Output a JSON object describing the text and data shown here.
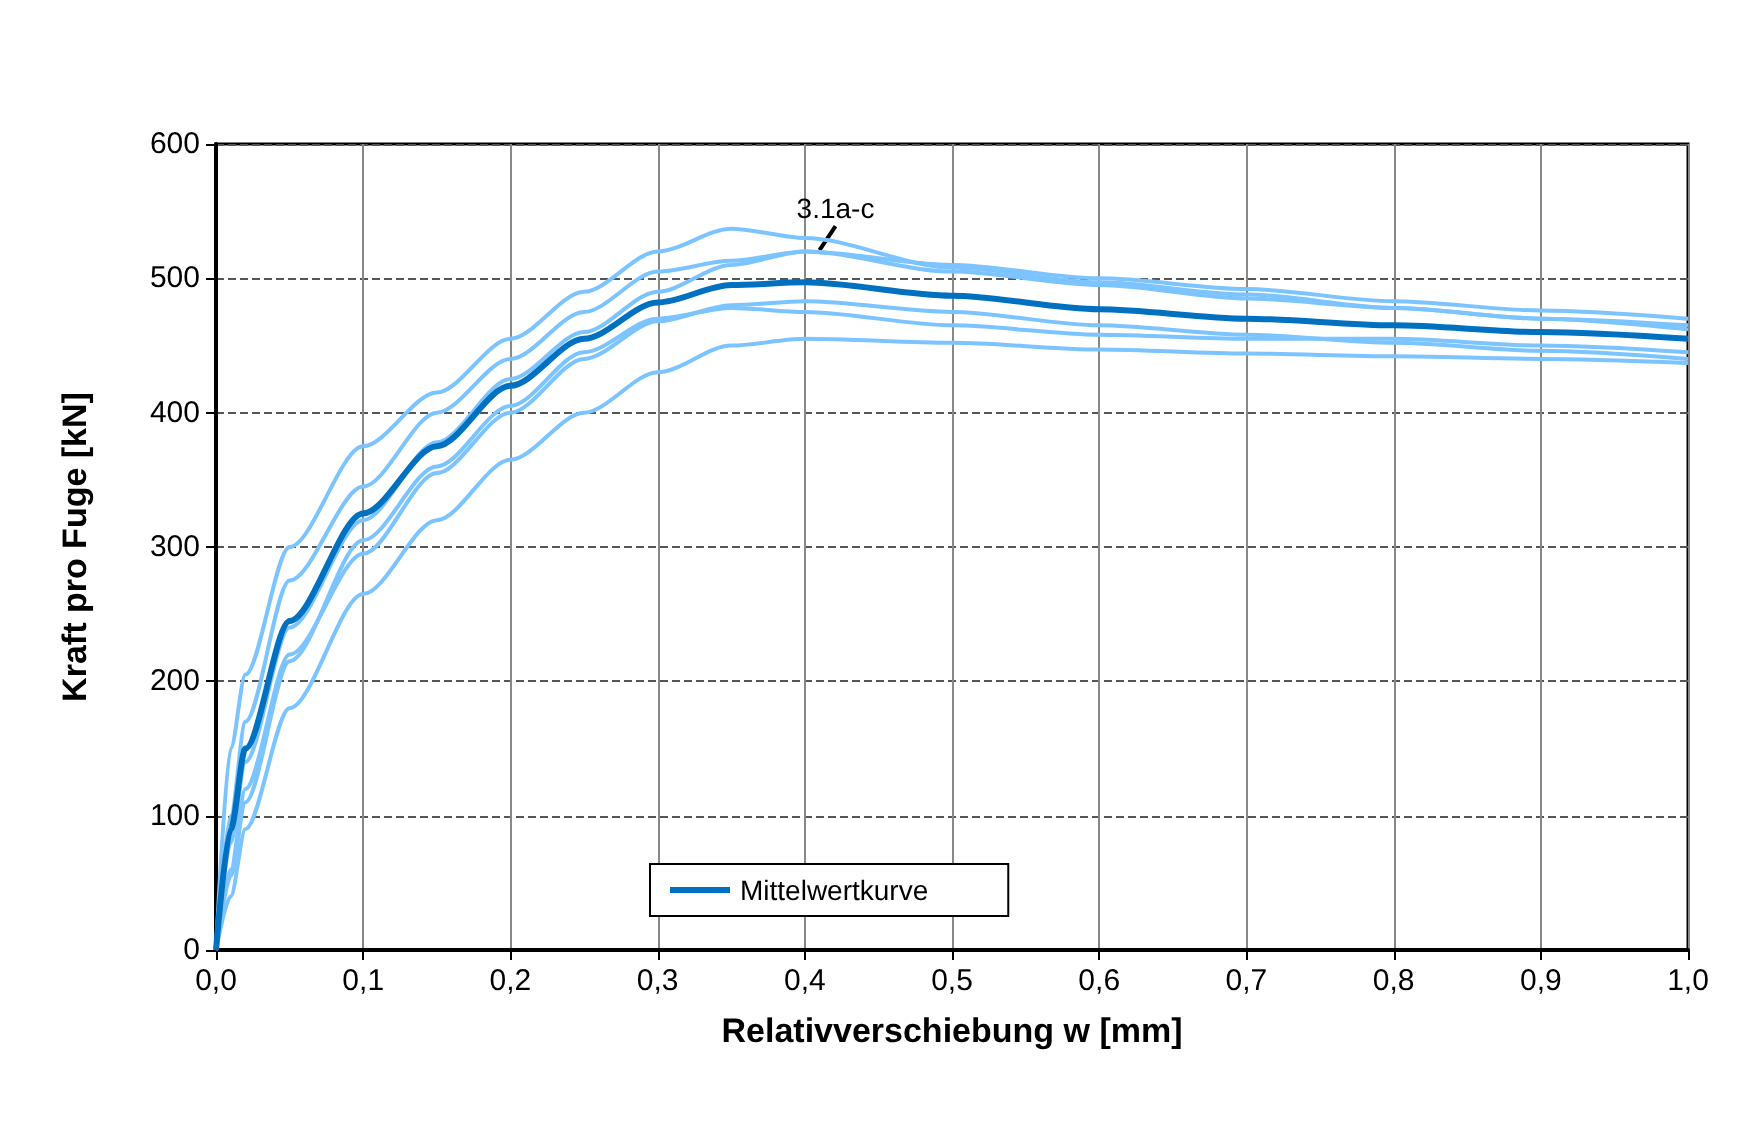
{
  "chart_data": {
    "type": "line",
    "xlabel": "Relativverschiebung w [mm]",
    "ylabel": "Kraft pro Fuge [kN]",
    "x": [
      0,
      0.01,
      0.02,
      0.05,
      0.1,
      0.15,
      0.2,
      0.25,
      0.3,
      0.35,
      0.4,
      0.5,
      0.6,
      0.7,
      0.8,
      0.9,
      1.0
    ],
    "series": [
      {
        "color": "#7cc4ff",
        "values": [
          0,
          150,
          205,
          300,
          375,
          415,
          455,
          490,
          520,
          537,
          530,
          508,
          497,
          488,
          478,
          470,
          462
        ]
      },
      {
        "color": "#7cc4ff",
        "values": [
          0,
          100,
          170,
          275,
          345,
          400,
          440,
          475,
          505,
          513,
          520,
          510,
          500,
          492,
          483,
          476,
          470
        ]
      },
      {
        "color": "#7cc4ff",
        "values": [
          0,
          80,
          140,
          240,
          320,
          378,
          425,
          460,
          490,
          510,
          520,
          505,
          495,
          485,
          478,
          470,
          465
        ]
      },
      {
        "color": "#7cc4ff",
        "values": [
          0,
          60,
          120,
          220,
          295,
          355,
          400,
          440,
          468,
          480,
          483,
          475,
          465,
          458,
          452,
          446,
          440
        ]
      },
      {
        "color": "#7cc4ff",
        "values": [
          0,
          55,
          110,
          215,
          305,
          360,
          405,
          445,
          470,
          478,
          475,
          465,
          458,
          455,
          455,
          450,
          445
        ]
      },
      {
        "color": "#7cc4ff",
        "values": [
          0,
          40,
          90,
          180,
          265,
          320,
          365,
          400,
          430,
          450,
          455,
          452,
          447,
          444,
          442,
          440,
          437
        ]
      },
      {
        "name": "Mittelwertkurve",
        "color": "#0070c0",
        "values": [
          0,
          90,
          150,
          245,
          325,
          375,
          420,
          455,
          482,
          495,
          497,
          487,
          477,
          470,
          465,
          460,
          455
        ]
      }
    ],
    "xlim": [
      0,
      1.0
    ],
    "xticks": [
      {
        "value": 0,
        "label": "0,0"
      },
      {
        "value": 0.1,
        "label": "0,1"
      },
      {
        "value": 0.2,
        "label": "0,2"
      },
      {
        "value": 0.3,
        "label": "0,3"
      },
      {
        "value": 0.4,
        "label": "0,4"
      },
      {
        "value": 0.5,
        "label": "0,5"
      },
      {
        "value": 0.6,
        "label": "0,6"
      },
      {
        "value": 0.7,
        "label": "0,7"
      },
      {
        "value": 0.8,
        "label": "0,8"
      },
      {
        "value": 0.9,
        "label": "0,9"
      },
      {
        "value": 1.0,
        "label": "1,0"
      }
    ],
    "ylim": [
      0,
      600
    ],
    "yticks": [
      0,
      100,
      200,
      300,
      400,
      500,
      600
    ],
    "annotations": [
      {
        "text": "3.1a-c",
        "x": 0.41,
        "y": 521
      }
    ],
    "grid": true,
    "legend": "bottom left",
    "marker": "none",
    "line_style": "solid"
  }
}
